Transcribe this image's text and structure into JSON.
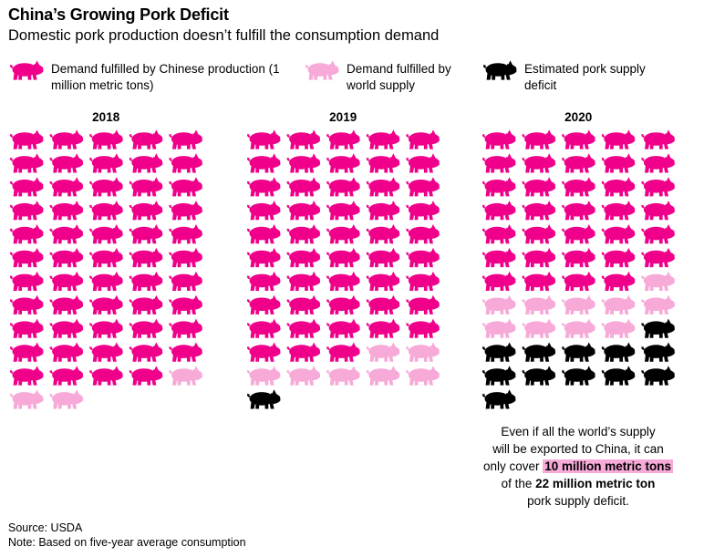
{
  "title": "China’s Growing Pork Deficit",
  "subtitle": "Domestic pork production doesn’t fulfill the consumption demand",
  "legend": [
    {
      "key": "domestic",
      "label": "Demand fulfilled by Chinese production (1 million metric tons)",
      "color": "#f0008a"
    },
    {
      "key": "world",
      "label": "Demand fulfilled by world supply",
      "color": "#f7a9d8"
    },
    {
      "key": "deficit",
      "label": "Estimated pork supply deficit",
      "color": "#000000"
    }
  ],
  "chart_data": {
    "type": "pictogram",
    "unit": "1 million metric tons",
    "categories": [
      "2018",
      "2019",
      "2020"
    ],
    "series": [
      {
        "name": "Demand fulfilled by Chinese production",
        "values": [
          54,
          48,
          34
        ]
      },
      {
        "name": "Demand fulfilled by world supply",
        "values": [
          3,
          7,
          10
        ]
      },
      {
        "name": "Estimated pork supply deficit",
        "values": [
          0,
          1,
          12
        ]
      }
    ]
  },
  "annotation": {
    "line1": "Even if all the world’s supply",
    "line2": "will be exported to China, it can",
    "line3_pre": "only cover",
    "line3_highlight": "10 million metric tons",
    "line4_pre": "of the",
    "line4_bold": "22 million metric ton",
    "line5": "pork supply deficit."
  },
  "source": "Source: USDA",
  "note": "Note: Based on five-year average consumption"
}
